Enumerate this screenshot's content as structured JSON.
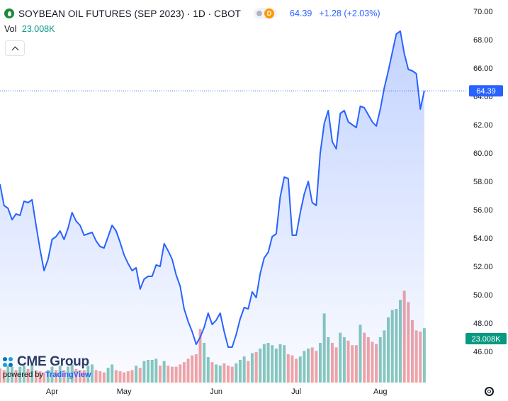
{
  "header": {
    "title": "SOYBEAN OIL FUTURES (SEP 2023) · 1D · CBOT",
    "last": "64.39",
    "change": "+1.28 (+2.03%)",
    "badge": "D"
  },
  "volume": {
    "label": "Vol",
    "value": "23.008K"
  },
  "branding": {
    "logo": "CME Group",
    "powered_by": "powered by",
    "platform": "TradingView"
  },
  "colors": {
    "line": "#2962ff",
    "up_volume": "#89c9bd",
    "down_volume": "#f2a5a5",
    "accent": "#2962ff"
  },
  "chart_data": {
    "type": "area",
    "title": "SOYBEAN OIL FUTURES (SEP 2023) · 1D · CBOT",
    "y_axis": {
      "min": 44.5,
      "max": 70.5,
      "ticks": [
        46,
        48,
        50,
        52,
        54,
        56,
        58,
        60,
        62,
        64,
        66,
        68,
        70
      ],
      "position": "right"
    },
    "x_axis": {
      "ticks": [
        {
          "label": "Apr",
          "index": 13
        },
        {
          "label": "May",
          "index": 31
        },
        {
          "label": "Jun",
          "index": 54
        },
        {
          "label": "Jul",
          "index": 74
        },
        {
          "label": "Aug",
          "index": 95
        }
      ]
    },
    "price_label": "64.39",
    "volume_label": "23.008K",
    "close": [
      57.8,
      56.3,
      56.1,
      55.3,
      55.7,
      55.6,
      56.6,
      56.5,
      56.7,
      54.9,
      53.2,
      51.7,
      52.5,
      53.9,
      54.1,
      54.5,
      53.9,
      54.7,
      55.8,
      55.2,
      54.9,
      54.2,
      54.3,
      54.4,
      53.8,
      53.4,
      53.3,
      54.1,
      54.9,
      54.5,
      53.7,
      52.8,
      52.2,
      51.7,
      51.9,
      50.4,
      51.1,
      51.3,
      51.3,
      52.1,
      52.0,
      53.6,
      53.1,
      52.5,
      51.4,
      50.6,
      49.0,
      48.1,
      47.4,
      46.5,
      47.0,
      47.7,
      48.7,
      47.9,
      48.2,
      48.7,
      47.4,
      46.3,
      46.3,
      47.2,
      48.3,
      49.1,
      49.0,
      50.2,
      49.8,
      51.5,
      52.6,
      53.0,
      54.1,
      54.3,
      56.9,
      58.3,
      58.2,
      54.2,
      54.2,
      55.8,
      57.1,
      58.0,
      56.5,
      56.3,
      60.0,
      62.1,
      63.0,
      60.8,
      60.3,
      62.8,
      63.0,
      62.2,
      62.0,
      61.8,
      63.3,
      63.2,
      62.7,
      62.2,
      61.9,
      63.1,
      64.6,
      65.8,
      67.1,
      68.4,
      68.6,
      67.0,
      65.9,
      65.8,
      65.6,
      63.1,
      64.4
    ],
    "volume_up": [
      false,
      false,
      true,
      true,
      false,
      true,
      true,
      false,
      true,
      false,
      false,
      false,
      true,
      true,
      false,
      true,
      false,
      true,
      true,
      false,
      false,
      false,
      true,
      true,
      false,
      false,
      false,
      true,
      true,
      false,
      false,
      false,
      false,
      false,
      true,
      false,
      true,
      true,
      true,
      true,
      false,
      true,
      false,
      false,
      false,
      false,
      false,
      false,
      false,
      false,
      false,
      true,
      true,
      false,
      true,
      true,
      false,
      false,
      false,
      true,
      true,
      true,
      false,
      true,
      false,
      true,
      true,
      true,
      true,
      true,
      true,
      true,
      false,
      false,
      false,
      true,
      true,
      true,
      false,
      false,
      true,
      true,
      true,
      false,
      false,
      true,
      true,
      false,
      false,
      false,
      true,
      false,
      false,
      false,
      false,
      true,
      true,
      true,
      true,
      true,
      true,
      false,
      false,
      false,
      false,
      false,
      true
    ],
    "volume_rel": [
      0.25,
      0.22,
      0.3,
      0.28,
      0.22,
      0.28,
      0.3,
      0.24,
      0.32,
      0.22,
      0.2,
      0.18,
      0.22,
      0.28,
      0.22,
      0.3,
      0.22,
      0.28,
      0.32,
      0.24,
      0.22,
      0.22,
      0.3,
      0.32,
      0.22,
      0.2,
      0.18,
      0.26,
      0.32,
      0.22,
      0.2,
      0.18,
      0.2,
      0.22,
      0.3,
      0.26,
      0.38,
      0.4,
      0.4,
      0.42,
      0.3,
      0.38,
      0.3,
      0.28,
      0.28,
      0.32,
      0.36,
      0.42,
      0.48,
      0.5,
      0.95,
      0.7,
      0.45,
      0.36,
      0.32,
      0.3,
      0.34,
      0.3,
      0.28,
      0.34,
      0.4,
      0.46,
      0.38,
      0.52,
      0.54,
      0.6,
      0.68,
      0.7,
      0.66,
      0.6,
      0.68,
      0.66,
      0.5,
      0.48,
      0.42,
      0.46,
      0.56,
      0.6,
      0.62,
      0.56,
      0.7,
      1.22,
      0.8,
      0.7,
      0.62,
      0.88,
      0.8,
      0.74,
      0.66,
      0.66,
      1.02,
      0.88,
      0.8,
      0.72,
      0.68,
      0.8,
      0.92,
      1.15,
      1.28,
      1.3,
      1.46,
      1.62,
      1.42,
      1.1,
      0.92,
      0.9,
      0.96
    ]
  }
}
